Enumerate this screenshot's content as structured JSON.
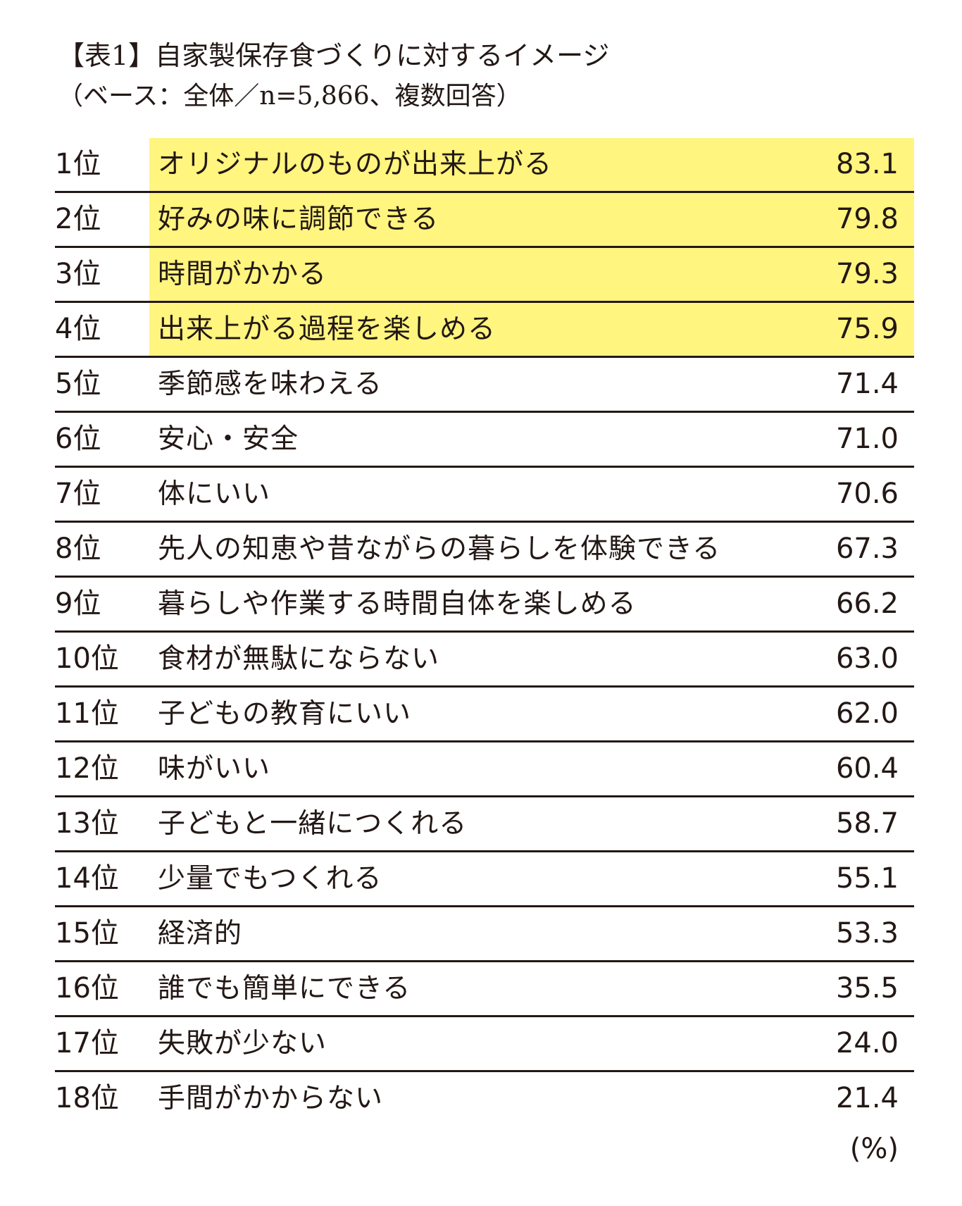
{
  "title": "【表1】自家製保存食づくりに対するイメージ",
  "subtitle": "（ベース：全体／n=5,866、複数回答）",
  "unit_label": "(%)",
  "colors": {
    "highlight": "#fff57f",
    "text": "#231815",
    "rule": "#231815"
  },
  "chart_data": {
    "type": "table",
    "title": "【表1】自家製保存食づくりに対するイメージ",
    "subtitle": "（ベース：全体／n=5,866、複数回答）",
    "unit": "(%)",
    "columns": [
      "rank",
      "item",
      "percent"
    ],
    "highlighted_top": 4,
    "rows": [
      {
        "rank": "1位",
        "item": "オリジナルのものが出来上がる",
        "value": "83.1",
        "highlight": true
      },
      {
        "rank": "2位",
        "item": "好みの味に調節できる",
        "value": "79.8",
        "highlight": true
      },
      {
        "rank": "3位",
        "item": "時間がかかる",
        "value": "79.3",
        "highlight": true
      },
      {
        "rank": "4位",
        "item": "出来上がる過程を楽しめる",
        "value": "75.9",
        "highlight": true
      },
      {
        "rank": "5位",
        "item": "季節感を味わえる",
        "value": "71.4",
        "highlight": false
      },
      {
        "rank": "6位",
        "item": "安心・安全",
        "value": "71.0",
        "highlight": false
      },
      {
        "rank": "7位",
        "item": "体にいい",
        "value": "70.6",
        "highlight": false
      },
      {
        "rank": "8位",
        "item": "先人の知恵や昔ながらの暮らしを体験できる",
        "value": "67.3",
        "highlight": false
      },
      {
        "rank": "9位",
        "item": "暮らしや作業する時間自体を楽しめる",
        "value": "66.2",
        "highlight": false
      },
      {
        "rank": "10位",
        "item": "食材が無駄にならない",
        "value": "63.0",
        "highlight": false
      },
      {
        "rank": "11位",
        "item": "子どもの教育にいい",
        "value": "62.0",
        "highlight": false
      },
      {
        "rank": "12位",
        "item": "味がいい",
        "value": "60.4",
        "highlight": false
      },
      {
        "rank": "13位",
        "item": "子どもと一緒につくれる",
        "value": "58.7",
        "highlight": false
      },
      {
        "rank": "14位",
        "item": "少量でもつくれる",
        "value": "55.1",
        "highlight": false
      },
      {
        "rank": "15位",
        "item": "経済的",
        "value": "53.3",
        "highlight": false
      },
      {
        "rank": "16位",
        "item": "誰でも簡単にできる",
        "value": "35.5",
        "highlight": false
      },
      {
        "rank": "17位",
        "item": "失敗が少ない",
        "value": "24.0",
        "highlight": false
      },
      {
        "rank": "18位",
        "item": "手間がかからない",
        "value": "21.4",
        "highlight": false
      }
    ]
  }
}
